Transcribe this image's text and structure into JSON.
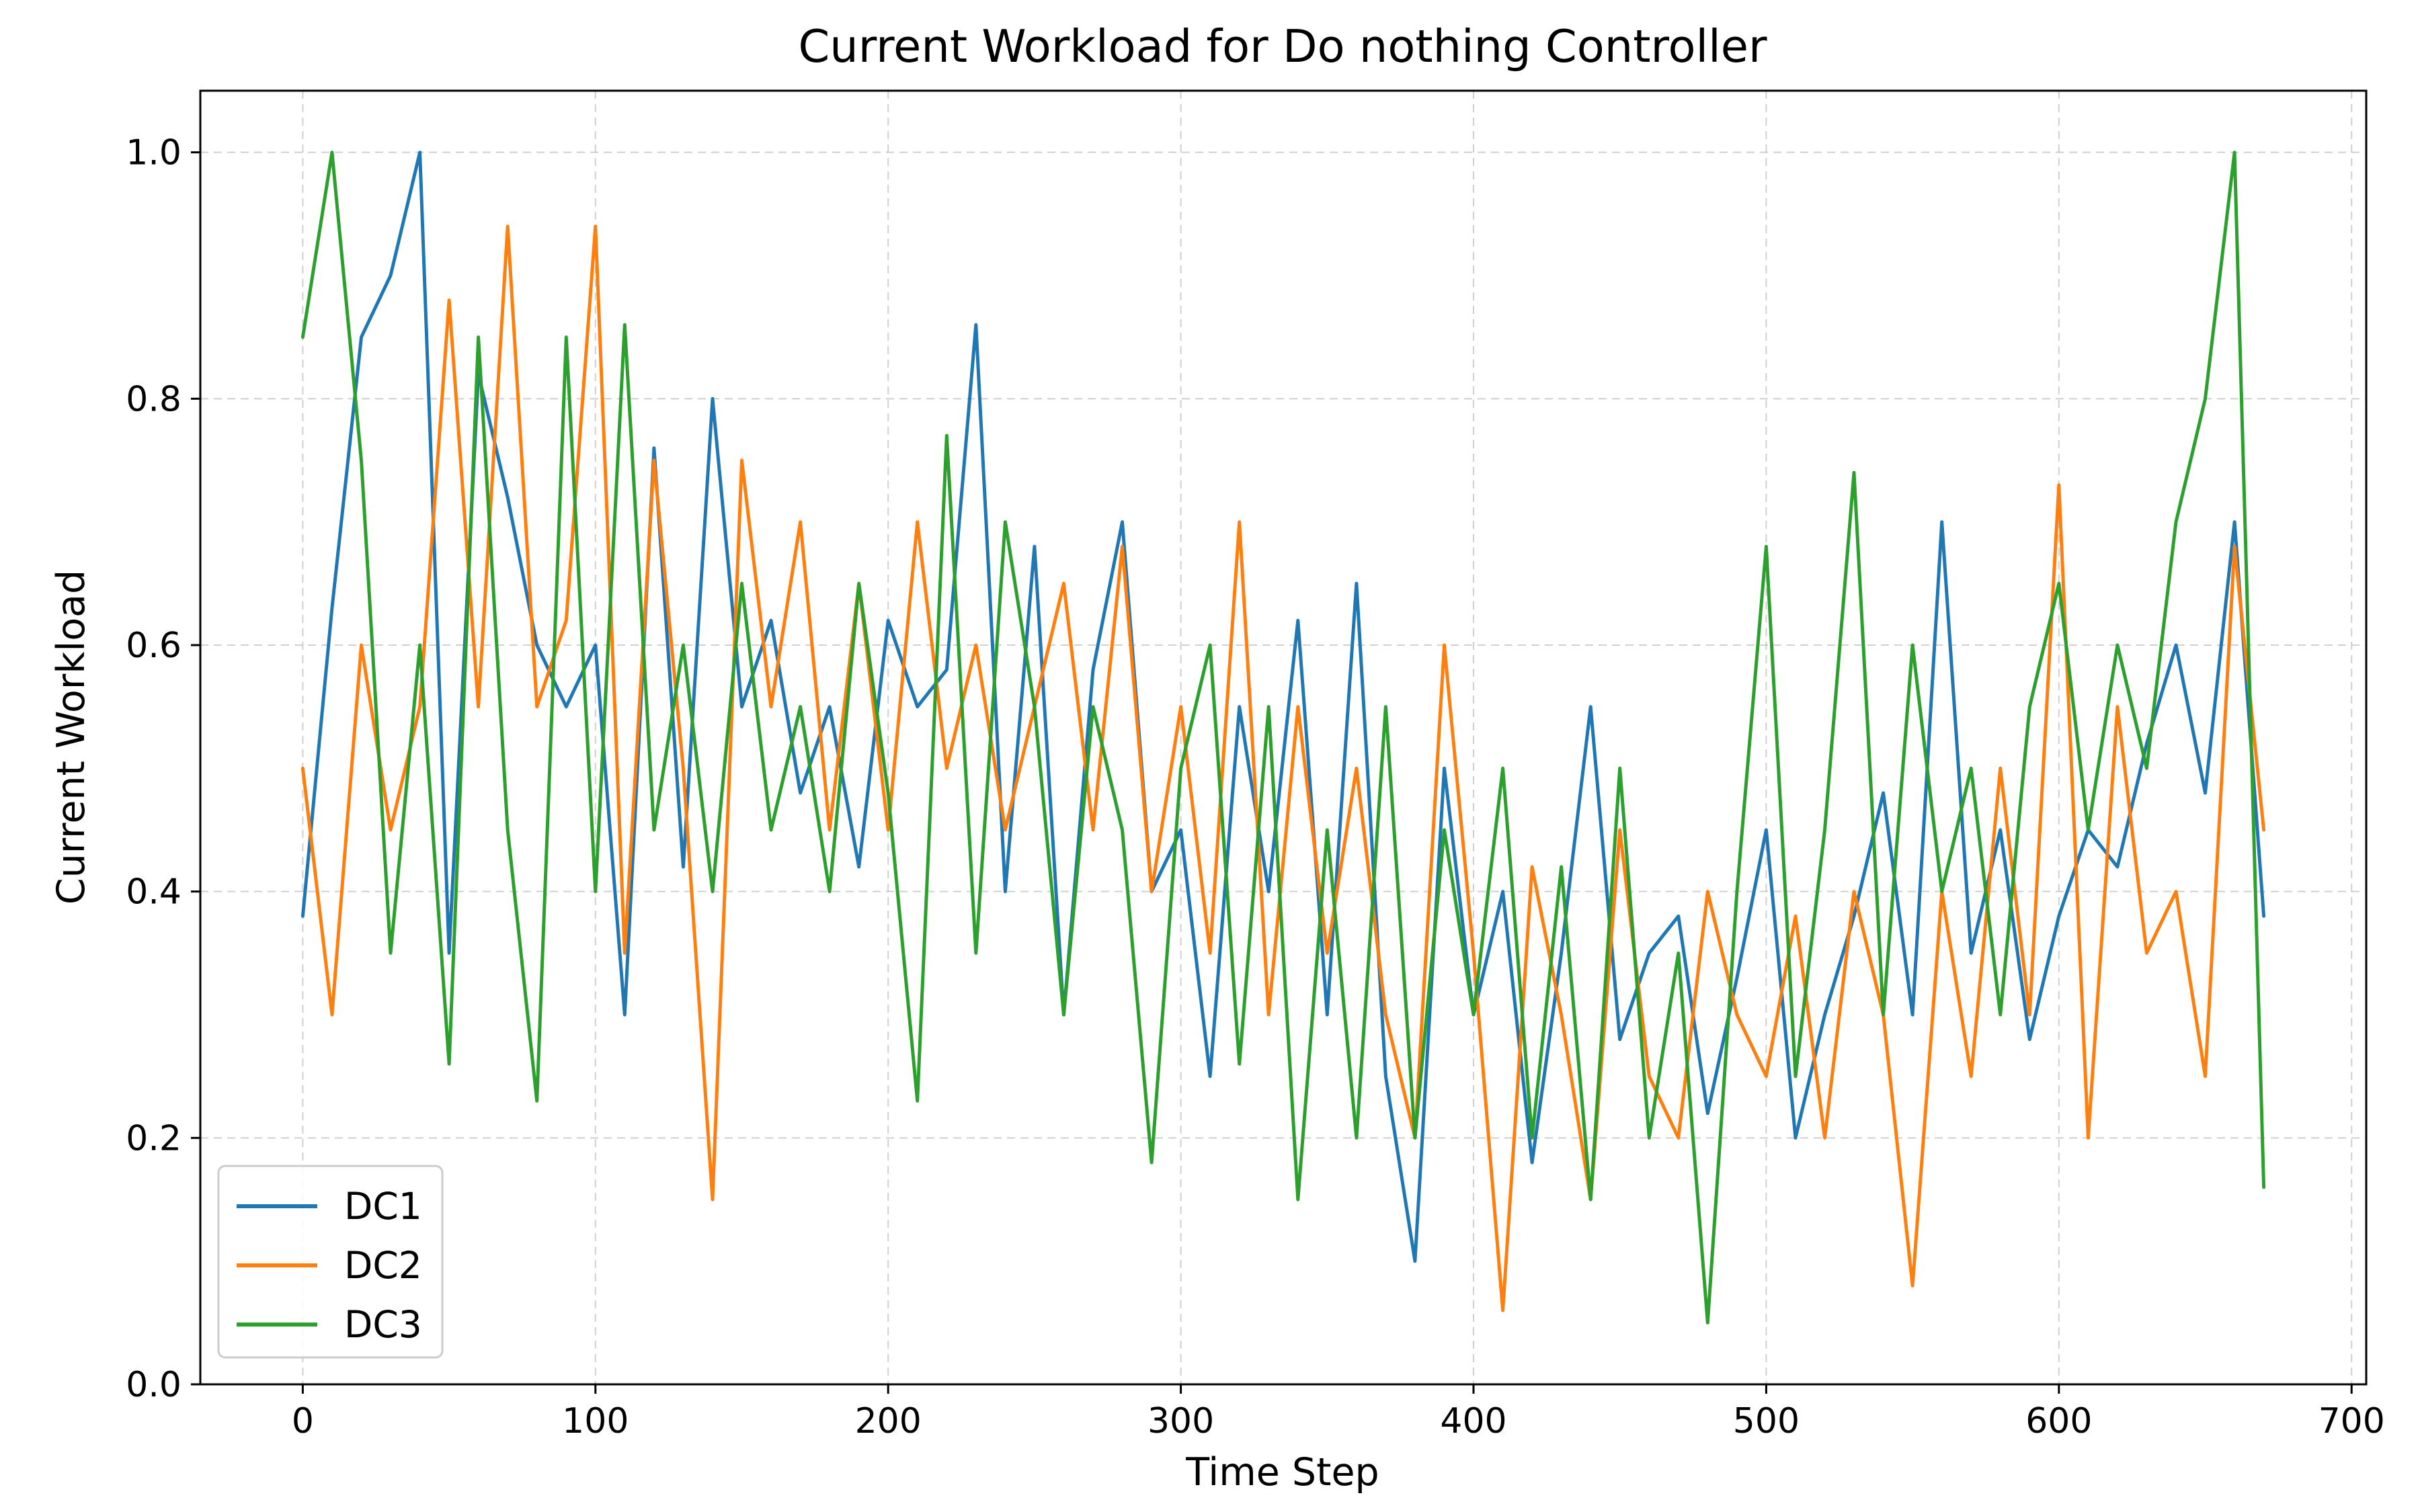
{
  "chart_data": {
    "type": "line",
    "title": "Current Workload for Do nothing Controller",
    "xlabel": "Time Step",
    "ylabel": "Current Workload",
    "xlim": [
      -35,
      705
    ],
    "ylim": [
      0.0,
      1.05
    ],
    "xticks": [
      0,
      100,
      200,
      300,
      400,
      500,
      600,
      700
    ],
    "yticks": [
      0.0,
      0.2,
      0.4,
      0.6,
      0.8,
      1.0
    ],
    "xtick_labels": [
      "0",
      "100",
      "200",
      "300",
      "400",
      "500",
      "600",
      "700"
    ],
    "ytick_labels": [
      "0.0",
      "0.2",
      "0.4",
      "0.6",
      "0.8",
      "1.0"
    ],
    "grid": true,
    "legend_position": "lower-left",
    "series": [
      {
        "name": "DC1",
        "color": "#1f77b4",
        "x": [
          0,
          10,
          20,
          30,
          40,
          50,
          60,
          70,
          80,
          90,
          100,
          110,
          120,
          130,
          140,
          150,
          160,
          170,
          180,
          190,
          200,
          210,
          220,
          230,
          240,
          250,
          260,
          270,
          280,
          290,
          300,
          310,
          320,
          330,
          340,
          350,
          360,
          370,
          380,
          390,
          400,
          410,
          420,
          430,
          440,
          450,
          460,
          470,
          480,
          490,
          500,
          510,
          520,
          530,
          540,
          550,
          560,
          570,
          580,
          590,
          600,
          610,
          620,
          630,
          640,
          650,
          660,
          670
        ],
        "values": [
          0.38,
          0.63,
          0.85,
          0.9,
          1.0,
          0.35,
          0.82,
          0.72,
          0.6,
          0.55,
          0.6,
          0.3,
          0.76,
          0.42,
          0.8,
          0.55,
          0.62,
          0.48,
          0.55,
          0.42,
          0.62,
          0.55,
          0.58,
          0.86,
          0.4,
          0.68,
          0.3,
          0.58,
          0.7,
          0.4,
          0.45,
          0.25,
          0.55,
          0.4,
          0.62,
          0.3,
          0.65,
          0.25,
          0.1,
          0.5,
          0.3,
          0.4,
          0.18,
          0.35,
          0.55,
          0.28,
          0.35,
          0.38,
          0.22,
          0.33,
          0.45,
          0.2,
          0.3,
          0.38,
          0.48,
          0.3,
          0.7,
          0.35,
          0.45,
          0.28,
          0.38,
          0.45,
          0.42,
          0.52,
          0.6,
          0.48,
          0.7,
          0.38
        ]
      },
      {
        "name": "DC2",
        "color": "#ff7f0e",
        "x": [
          0,
          10,
          20,
          30,
          40,
          50,
          60,
          70,
          80,
          90,
          100,
          110,
          120,
          130,
          140,
          150,
          160,
          170,
          180,
          190,
          200,
          210,
          220,
          230,
          240,
          250,
          260,
          270,
          280,
          290,
          300,
          310,
          320,
          330,
          340,
          350,
          360,
          370,
          380,
          390,
          400,
          410,
          420,
          430,
          440,
          450,
          460,
          470,
          480,
          490,
          500,
          510,
          520,
          530,
          540,
          550,
          560,
          570,
          580,
          590,
          600,
          610,
          620,
          630,
          640,
          650,
          660,
          670
        ],
        "values": [
          0.5,
          0.3,
          0.6,
          0.45,
          0.55,
          0.88,
          0.55,
          0.94,
          0.55,
          0.62,
          0.94,
          0.35,
          0.75,
          0.5,
          0.15,
          0.75,
          0.55,
          0.7,
          0.45,
          0.65,
          0.45,
          0.7,
          0.5,
          0.6,
          0.45,
          0.55,
          0.65,
          0.45,
          0.68,
          0.4,
          0.55,
          0.35,
          0.7,
          0.3,
          0.55,
          0.35,
          0.5,
          0.3,
          0.2,
          0.6,
          0.35,
          0.06,
          0.42,
          0.3,
          0.15,
          0.45,
          0.25,
          0.2,
          0.4,
          0.3,
          0.25,
          0.38,
          0.2,
          0.4,
          0.3,
          0.08,
          0.4,
          0.25,
          0.5,
          0.3,
          0.73,
          0.2,
          0.55,
          0.35,
          0.4,
          0.25,
          0.68,
          0.45
        ]
      },
      {
        "name": "DC3",
        "color": "#2ca02c",
        "x": [
          0,
          10,
          20,
          30,
          40,
          50,
          60,
          70,
          80,
          90,
          100,
          110,
          120,
          130,
          140,
          150,
          160,
          170,
          180,
          190,
          200,
          210,
          220,
          230,
          240,
          250,
          260,
          270,
          280,
          290,
          300,
          310,
          320,
          330,
          340,
          350,
          360,
          370,
          380,
          390,
          400,
          410,
          420,
          430,
          440,
          450,
          460,
          470,
          480,
          490,
          500,
          510,
          520,
          530,
          540,
          550,
          560,
          570,
          580,
          590,
          600,
          610,
          620,
          630,
          640,
          650,
          660,
          670
        ],
        "values": [
          0.85,
          1.0,
          0.75,
          0.35,
          0.6,
          0.26,
          0.85,
          0.45,
          0.23,
          0.85,
          0.4,
          0.86,
          0.45,
          0.6,
          0.4,
          0.65,
          0.45,
          0.55,
          0.4,
          0.65,
          0.48,
          0.23,
          0.77,
          0.35,
          0.7,
          0.55,
          0.3,
          0.55,
          0.45,
          0.18,
          0.5,
          0.6,
          0.26,
          0.55,
          0.15,
          0.45,
          0.2,
          0.55,
          0.2,
          0.45,
          0.3,
          0.5,
          0.2,
          0.42,
          0.15,
          0.5,
          0.2,
          0.35,
          0.05,
          0.4,
          0.68,
          0.25,
          0.45,
          0.74,
          0.3,
          0.6,
          0.4,
          0.5,
          0.3,
          0.55,
          0.65,
          0.45,
          0.6,
          0.5,
          0.7,
          0.8,
          1.0,
          0.16
        ]
      }
    ]
  }
}
